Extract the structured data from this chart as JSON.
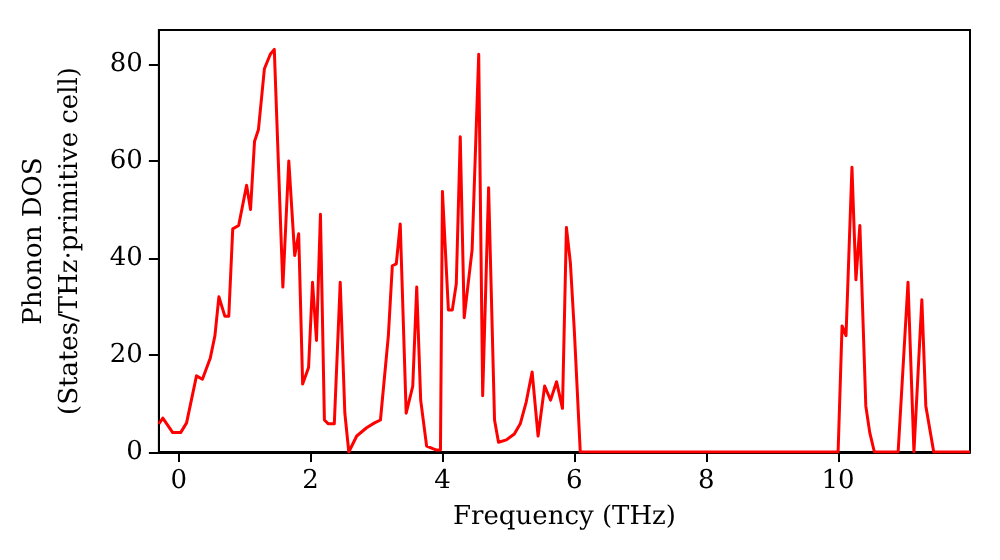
{
  "chart_data": {
    "type": "line",
    "xlabel": "Frequency (THz)",
    "ylabel": "Phonon DOS\n(States/THz·primitive cell)",
    "xlim": [
      -0.3,
      12
    ],
    "xticks": [
      0,
      2,
      4,
      6,
      8,
      10
    ],
    "ylim": [
      0,
      87
    ],
    "yticks": [
      0,
      20,
      40,
      60,
      80
    ],
    "grid": false,
    "marker": "none",
    "line_style": "solid",
    "series": [
      {
        "color": "#ff0000",
        "x": [
          -0.3,
          -0.24,
          -0.09,
          0.03,
          0.12,
          0.27,
          0.36,
          0.48,
          0.55,
          0.61,
          0.7,
          0.76,
          0.82,
          0.91,
          1.03,
          1.09,
          1.15,
          1.21,
          1.3,
          1.39,
          1.45,
          1.58,
          1.67,
          1.76,
          1.82,
          1.88,
          1.97,
          2.03,
          2.09,
          2.15,
          2.21,
          2.27,
          2.36,
          2.45,
          2.52,
          2.58,
          2.7,
          2.85,
          2.97,
          3.06,
          3.18,
          3.24,
          3.3,
          3.36,
          3.45,
          3.55,
          3.61,
          3.67,
          3.76,
          3.91,
          3.97,
          4.0,
          4.09,
          4.15,
          4.21,
          4.27,
          4.33,
          4.45,
          4.55,
          4.61,
          4.7,
          4.79,
          4.85,
          4.97,
          5.09,
          5.18,
          5.27,
          5.36,
          5.45,
          5.55,
          5.64,
          5.73,
          5.82,
          5.88,
          5.94,
          6.0,
          6.09,
          10.0,
          10.06,
          10.12,
          10.21,
          10.27,
          10.33,
          10.42,
          10.48,
          10.55,
          10.91,
          11.06,
          11.15,
          11.27,
          11.33,
          11.45,
          12.0
        ],
        "values": [
          5.8,
          7,
          4,
          4,
          6,
          15.7,
          15,
          19.4,
          24,
          32,
          28,
          28,
          46,
          46.7,
          55,
          50,
          64,
          66.5,
          79,
          82,
          83,
          34,
          60,
          40.5,
          45,
          14,
          17.4,
          35,
          23,
          49,
          6.6,
          5.8,
          5.8,
          35,
          8,
          0,
          3.3,
          5,
          6,
          6.6,
          24,
          38.4,
          38.8,
          47,
          8,
          13.6,
          34,
          10.7,
          1.2,
          0.4,
          0.4,
          53.7,
          29.3,
          29.3,
          34.7,
          65,
          27.7,
          41.7,
          82,
          11.6,
          54.5,
          6.6,
          2,
          2.5,
          3.7,
          5.8,
          10.3,
          16.5,
          3.3,
          13.6,
          10.7,
          14.5,
          9,
          46.3,
          39,
          25,
          0,
          0,
          26,
          24,
          58.7,
          35.5,
          46.7,
          9.5,
          4,
          0,
          0,
          35,
          0,
          31.4,
          9.5,
          0,
          0
        ]
      }
    ]
  }
}
